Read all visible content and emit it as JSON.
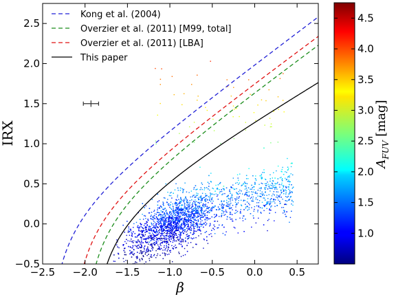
{
  "chart_data": {
    "type": "scatter",
    "xlabel": "β",
    "ylabel": "IRX",
    "xlim": [
      -2.5,
      0.75
    ],
    "ylim": [
      -0.5,
      2.75
    ],
    "xticks": [
      "−2.5",
      "−2.0",
      "−1.5",
      "−1.0",
      "−0.5",
      "0.0",
      "0.5"
    ],
    "xtick_values": [
      -2.5,
      -2.0,
      -1.5,
      -1.0,
      -0.5,
      0.0,
      0.5
    ],
    "yticks": [
      "−0.5",
      "0.0",
      "0.5",
      "1.0",
      "1.5",
      "2.0",
      "2.5"
    ],
    "ytick_values": [
      -0.5,
      0.0,
      0.5,
      1.0,
      1.5,
      2.0,
      2.5
    ],
    "legend_position": "top-left",
    "legend": [
      {
        "label": "Kong et al. (2004)",
        "color": "#1f1fd6",
        "style": "dashed"
      },
      {
        "label": "Overzier et al. (2011) [M99, total]",
        "color": "#1a8c1a",
        "style": "dashed"
      },
      {
        "label": "Overzier et al. (2011) [LBA]",
        "color": "#e01010",
        "style": "dashed"
      },
      {
        "label": "This paper",
        "color": "#000000",
        "style": "solid"
      }
    ],
    "curves": {
      "kong": {
        "beta0": -2.4,
        "coef": 1.99
      },
      "overzier_total": {
        "beta0": -2.0,
        "coef": 1.96
      },
      "overzier_lba": {
        "beta0": -2.14,
        "coef": 1.96
      },
      "this_paper": {
        "beta0": -1.9,
        "coef": 1.6
      }
    },
    "error_bar": {
      "x": -1.93,
      "y": 1.5,
      "xerr": 0.09,
      "yerr": 0.04
    },
    "scatter": {
      "description_count": 3200,
      "beta_center": -0.95,
      "irx_trend": "follows this-paper relation with scatter",
      "color_by": "A_FUV"
    },
    "colorbar": {
      "label": "A_FUV [mag]",
      "ticks": [
        "1.0",
        "1.5",
        "2.0",
        "2.5",
        "3.0",
        "3.5",
        "4.0",
        "4.5"
      ],
      "tick_values": [
        1.0,
        1.5,
        2.0,
        2.5,
        3.0,
        3.5,
        4.0,
        4.5
      ],
      "range": [
        0.5,
        4.75
      ],
      "colormap": "jet"
    }
  }
}
